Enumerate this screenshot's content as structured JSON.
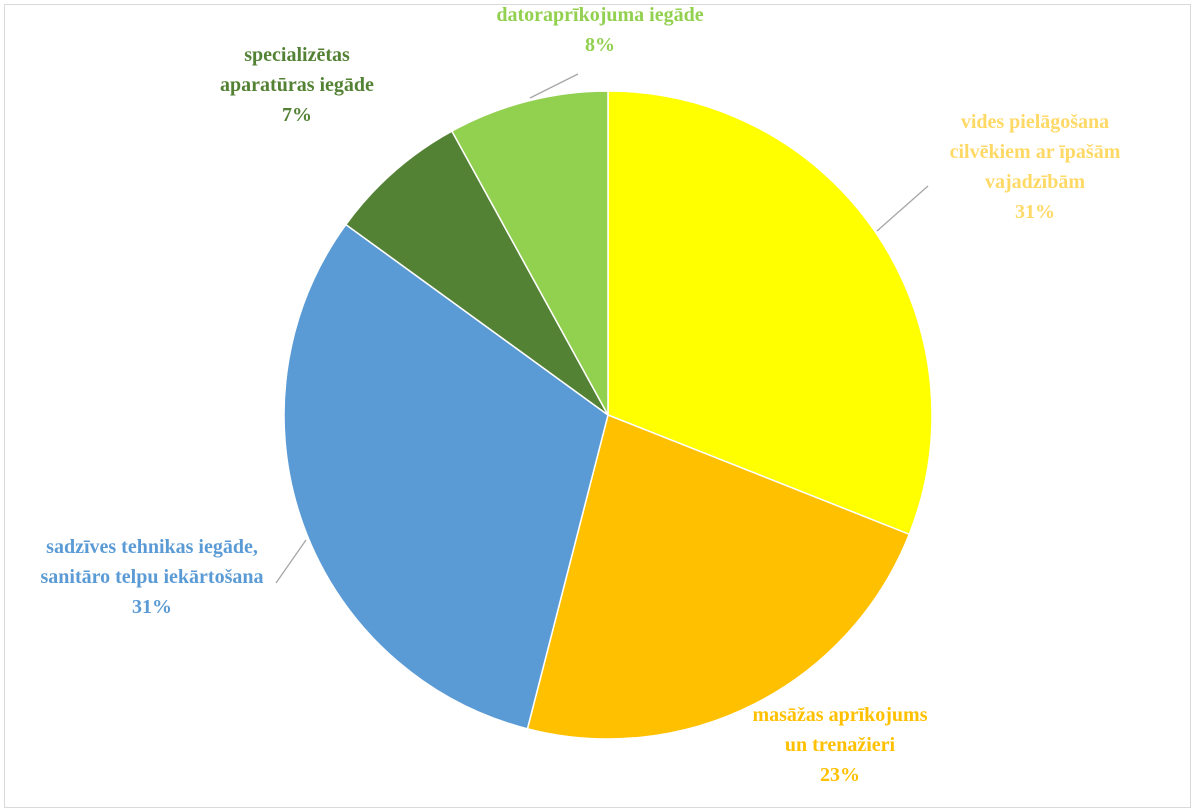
{
  "chart_data": {
    "type": "pie",
    "categories": [
      "vides pielāgošana cilvēkiem ar īpašām vajadzībām",
      "masāžas aprīkojums un trenažieri",
      "sadzīves tehnikas iegāde, sanitāro telpu iekārtošana",
      "specializētas aparatūras iegāde",
      "datoraprīkojuma iegāde"
    ],
    "values": [
      31,
      23,
      31,
      7,
      8
    ],
    "value_labels": [
      "31%",
      "23%",
      "31%",
      "7%",
      "8%"
    ],
    "colors": [
      "#ffff00",
      "#ffc000",
      "#5b9bd5",
      "#548235",
      "#92d050"
    ],
    "label_colors": [
      "#ffd966",
      "#ffc000",
      "#5b9bd5",
      "#548235",
      "#92d050"
    ]
  }
}
